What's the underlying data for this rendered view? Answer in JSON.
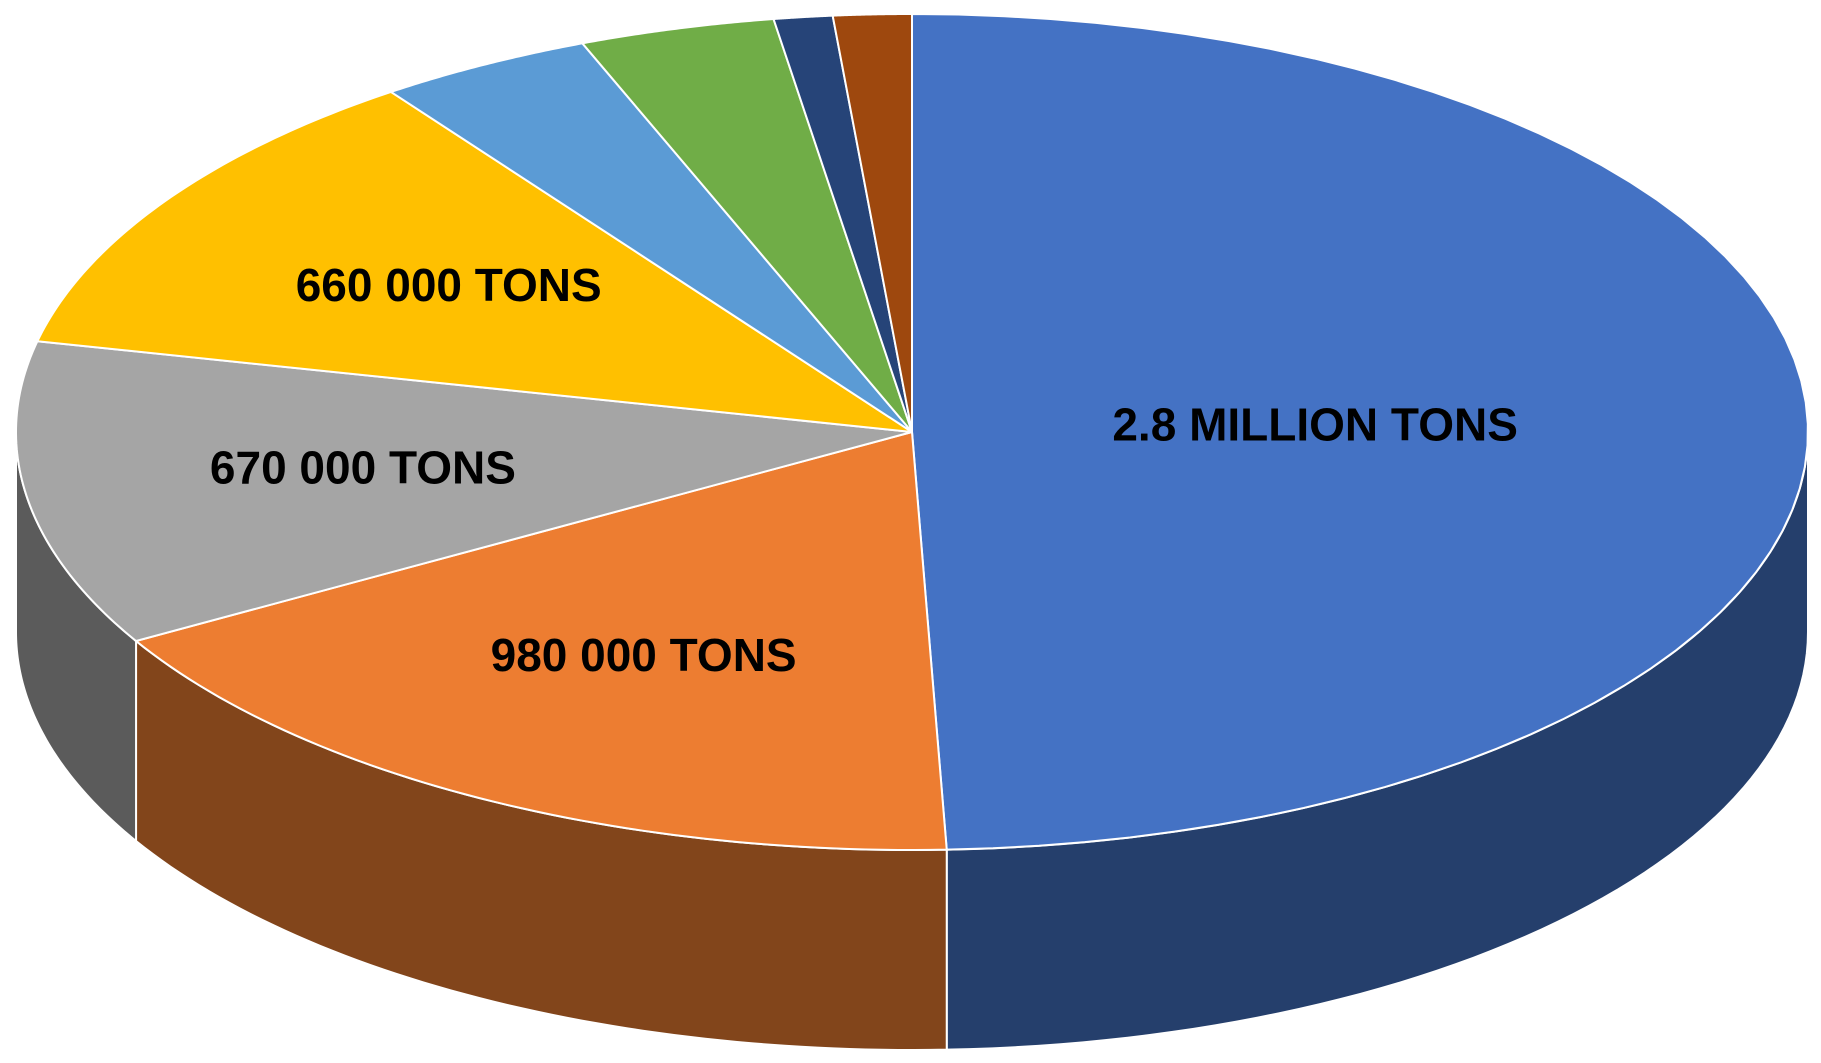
{
  "chart_data": {
    "type": "pie3d",
    "values": [
      2800000,
      980000,
      670000,
      660000,
      220000,
      200000,
      60000,
      80000
    ],
    "value_labels": [
      "2.8 MILLION TONS",
      "980 000 TONS",
      "670 000 TONS",
      "660 000 TONS",
      null,
      null,
      null,
      null
    ],
    "colors": [
      "#4472c4",
      "#ed7d31",
      "#a5a5a5",
      "#ffc000",
      "#5b9bd5",
      "#70ad47",
      "#264478",
      "#9e480e"
    ]
  }
}
